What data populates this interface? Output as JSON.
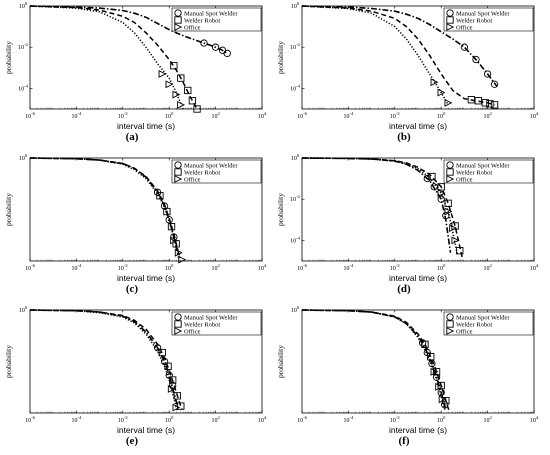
{
  "figure": {
    "style": {
      "manual_line": "#000000",
      "welder_line": "#000000",
      "office_line": "#000000"
    }
  },
  "chart_data": [
    {
      "type": "line",
      "panel_label": "(a)",
      "xlabel": "interval time (s)",
      "ylabel": "probability",
      "xscale": "log",
      "yscale": "log",
      "xlim": [
        "10^-6",
        "10^4"
      ],
      "x_ticks": [
        "10^-6",
        "10^-4",
        "10^-2",
        "10^0",
        "10^2",
        "10^4"
      ],
      "y_ticks": [
        "10^-4",
        "10^-2",
        "10^0"
      ],
      "ylim_log10": [
        -5,
        0
      ],
      "xlim_log10": [
        -6,
        4
      ],
      "legend": [
        "Manual Spot Welder",
        "Welder Robot",
        "Office"
      ],
      "legend_position": "top-right",
      "series": [
        {
          "name": "Manual Spot Welder",
          "marker": "circle",
          "line": "dash-dot",
          "x_log10": [
            -6,
            -4,
            -3,
            -2,
            -1.5,
            -1,
            -0.5,
            0,
            0.5,
            1,
            1.5,
            2,
            2.3,
            2.5
          ],
          "y_log10": [
            0,
            -0.05,
            -0.1,
            -0.22,
            -0.35,
            -0.55,
            -0.85,
            -1.15,
            -1.4,
            -1.6,
            -1.8,
            -2.0,
            -2.15,
            -2.3
          ],
          "markers_x_log10": [
            1.5,
            2.0,
            2.3,
            2.5
          ],
          "markers_y_log10": [
            -1.8,
            -2.0,
            -2.15,
            -2.3
          ]
        },
        {
          "name": "Welder Robot",
          "marker": "square",
          "line": "dashed",
          "x_log10": [
            -6,
            -4,
            -3,
            -2,
            -1.5,
            -1,
            -0.5,
            0,
            0.3,
            0.6,
            0.9,
            1.2
          ],
          "y_log10": [
            0,
            -0.08,
            -0.2,
            -0.5,
            -0.8,
            -1.3,
            -1.9,
            -2.6,
            -3.1,
            -3.7,
            -4.4,
            -5.0
          ],
          "markers_x_log10": [
            0.2,
            0.5,
            0.8,
            1.0,
            1.2
          ],
          "markers_y_log10": [
            -2.9,
            -3.5,
            -4.1,
            -4.6,
            -5.0
          ]
        },
        {
          "name": "Office",
          "marker": "triangle",
          "line": "dotted",
          "x_log10": [
            -6,
            -4,
            -3,
            -2,
            -1.5,
            -1,
            -0.5,
            0,
            0.3,
            0.6
          ],
          "y_log10": [
            0,
            -0.1,
            -0.28,
            -0.8,
            -1.3,
            -2.0,
            -2.8,
            -3.5,
            -4.2,
            -5.0
          ],
          "markers_x_log10": [
            -0.3,
            0.0,
            0.3,
            0.5
          ],
          "markers_y_log10": [
            -3.3,
            -3.8,
            -4.3,
            -4.8
          ]
        }
      ]
    },
    {
      "type": "line",
      "panel_label": "(b)",
      "xlabel": "interval time (s)",
      "ylabel": "probability",
      "xscale": "log",
      "yscale": "log",
      "xlim": [
        "10^-6",
        "10^4"
      ],
      "x_ticks": [
        "10^-6",
        "10^-4",
        "10^-2",
        "10^0",
        "10^2",
        "10^4"
      ],
      "y_ticks": [
        "10^-4",
        "10^-2",
        "10^0"
      ],
      "ylim_log10": [
        -5,
        0
      ],
      "xlim_log10": [
        -6,
        4
      ],
      "legend": [
        "Manual Spot Welder",
        "Welder Robot",
        "Office"
      ],
      "legend_position": "top-right",
      "series": [
        {
          "name": "Manual Spot Welder",
          "marker": "circle",
          "line": "dash-dot",
          "x_log10": [
            -6,
            -4,
            -3,
            -2,
            -1.5,
            -1,
            -0.5,
            0,
            0.5,
            1,
            1.5,
            2,
            2.4
          ],
          "y_log10": [
            0,
            -0.05,
            -0.12,
            -0.25,
            -0.4,
            -0.6,
            -0.9,
            -1.25,
            -1.6,
            -2.0,
            -2.6,
            -3.3,
            -3.9
          ],
          "markers_x_log10": [
            1.0,
            1.5,
            2.0,
            2.3
          ],
          "markers_y_log10": [
            -2.0,
            -2.6,
            -3.3,
            -3.8
          ]
        },
        {
          "name": "Welder Robot",
          "marker": "square",
          "line": "dashed",
          "x_log10": [
            -6,
            -4,
            -3,
            -2,
            -1.5,
            -1,
            -0.5,
            0,
            0.5,
            1,
            1.5,
            2,
            2.3
          ],
          "y_log10": [
            0,
            -0.1,
            -0.25,
            -0.6,
            -1.0,
            -1.6,
            -2.4,
            -3.3,
            -4.1,
            -4.5,
            -4.6,
            -4.7,
            -4.8
          ],
          "markers_x_log10": [
            1.3,
            1.6,
            1.9,
            2.1,
            2.3
          ],
          "markers_y_log10": [
            -4.55,
            -4.6,
            -4.7,
            -4.75,
            -4.8
          ]
        },
        {
          "name": "Office",
          "marker": "triangle",
          "line": "dotted",
          "x_log10": [
            -6,
            -4,
            -3,
            -2,
            -1.5,
            -1,
            -0.5,
            0,
            0.3
          ],
          "y_log10": [
            0,
            -0.12,
            -0.35,
            -1.0,
            -1.6,
            -2.4,
            -3.3,
            -4.2,
            -4.8
          ],
          "markers_x_log10": [
            -0.3,
            0.0,
            0.3
          ],
          "markers_y_log10": [
            -3.7,
            -4.2,
            -4.7
          ]
        }
      ]
    },
    {
      "type": "line",
      "panel_label": "(c)",
      "xlabel": "interval time (s)",
      "ylabel": "probability",
      "xscale": "log",
      "yscale": "log",
      "xlim": [
        "10^-6",
        "10^4"
      ],
      "x_ticks": [
        "10^-6",
        "10^-4",
        "10^-2",
        "10^0",
        "10^2",
        "10^4"
      ],
      "y_ticks": [
        "10^0"
      ],
      "ylim_log10": [
        -1.5,
        0
      ],
      "xlim_log10": [
        -6,
        4
      ],
      "legend": [
        "Manual Spot Welder",
        "Welder Robot",
        "Office"
      ],
      "legend_position": "top-right",
      "series": [
        {
          "name": "Manual Spot Welder",
          "marker": "circle",
          "line": "dash-dot",
          "x_log10": [
            -6,
            -4,
            -3,
            -2,
            -1.5,
            -1,
            -0.5,
            -0.2,
            0,
            0.2,
            0.4
          ],
          "y_log10": [
            0,
            -0.01,
            -0.03,
            -0.08,
            -0.15,
            -0.28,
            -0.5,
            -0.7,
            -0.9,
            -1.15,
            -1.45
          ],
          "markers_x_log10": [
            -0.5,
            -0.2,
            0.0,
            0.2
          ],
          "markers_y_log10": [
            -0.5,
            -0.7,
            -0.9,
            -1.15
          ]
        },
        {
          "name": "Welder Robot",
          "marker": "square",
          "line": "dashed",
          "x_log10": [
            -6,
            -4,
            -3,
            -2,
            -1.5,
            -1,
            -0.5,
            -0.2,
            0,
            0.2,
            0.45
          ],
          "y_log10": [
            0,
            -0.01,
            -0.03,
            -0.08,
            -0.15,
            -0.27,
            -0.48,
            -0.68,
            -0.88,
            -1.1,
            -1.45
          ],
          "markers_x_log10": [
            -0.4,
            -0.1,
            0.1,
            0.3
          ],
          "markers_y_log10": [
            -0.55,
            -0.78,
            -1.0,
            -1.25
          ]
        },
        {
          "name": "Office",
          "marker": "triangle",
          "line": "dotted",
          "x_log10": [
            -6,
            -4,
            -3,
            -2,
            -1.5,
            -1,
            -0.5,
            -0.2,
            0,
            0.2,
            0.5
          ],
          "y_log10": [
            0,
            -0.01,
            -0.03,
            -0.09,
            -0.17,
            -0.3,
            -0.52,
            -0.72,
            -0.92,
            -1.15,
            -1.48
          ],
          "markers_x_log10": [
            0.2,
            0.4,
            0.55
          ],
          "markers_y_log10": [
            -1.2,
            -1.38,
            -1.48
          ]
        }
      ]
    },
    {
      "type": "line",
      "panel_label": "(d)",
      "xlabel": "interval time (s)",
      "ylabel": "probability",
      "xscale": "log",
      "yscale": "log",
      "xlim": [
        "10^-6",
        "10^4"
      ],
      "x_ticks": [
        "10^-6",
        "10^-4",
        "10^-2",
        "10^0",
        "10^2",
        "10^4"
      ],
      "y_ticks": [
        "10^-4",
        "10^-2",
        "10^0"
      ],
      "ylim_log10": [
        -5,
        0
      ],
      "xlim_log10": [
        -6,
        4
      ],
      "legend": [
        "Manual Spot Welder",
        "Welder Robot",
        "Office"
      ],
      "legend_position": "top-right",
      "series": [
        {
          "name": "Manual Spot Welder",
          "marker": "circle",
          "line": "dash-dot",
          "x_log10": [
            -6,
            -4,
            -3,
            -2,
            -1.5,
            -1,
            -0.5,
            0,
            0.2,
            0.4
          ],
          "y_log10": [
            0,
            -0.02,
            -0.05,
            -0.15,
            -0.3,
            -0.6,
            -1.1,
            -2.0,
            -3.0,
            -4.6
          ],
          "markers_x_log10": [
            -0.6,
            -0.3,
            0.0,
            0.2
          ],
          "markers_y_log10": [
            -1.0,
            -1.4,
            -2.0,
            -2.8
          ]
        },
        {
          "name": "Welder Robot",
          "marker": "square",
          "line": "dashed",
          "x_log10": [
            -6,
            -4,
            -3,
            -2,
            -1.5,
            -1,
            -0.5,
            0,
            0.3,
            0.6,
            0.9
          ],
          "y_log10": [
            0,
            -0.02,
            -0.05,
            -0.13,
            -0.24,
            -0.45,
            -0.8,
            -1.4,
            -2.2,
            -3.3,
            -4.8
          ],
          "markers_x_log10": [
            -0.4,
            0.0,
            0.3,
            0.6,
            0.8
          ],
          "markers_y_log10": [
            -0.9,
            -1.4,
            -2.2,
            -3.3,
            -4.5
          ]
        },
        {
          "name": "Office",
          "marker": "triangle",
          "line": "dotted",
          "x_log10": [
            -6,
            -4,
            -3,
            -2,
            -1.5,
            -1,
            -0.5,
            0,
            0.3,
            0.5,
            0.7
          ],
          "y_log10": [
            0,
            -0.02,
            -0.05,
            -0.14,
            -0.27,
            -0.52,
            -0.95,
            -1.7,
            -2.6,
            -3.6,
            -4.7
          ],
          "markers_x_log10": [
            0.0,
            0.3,
            0.5,
            0.6
          ],
          "markers_y_log10": [
            -1.7,
            -2.6,
            -3.4,
            -4.0
          ]
        }
      ]
    },
    {
      "type": "line",
      "panel_label": "(e)",
      "xlabel": "interval time (s)",
      "ylabel": "probability",
      "xscale": "log",
      "yscale": "log",
      "xlim": [
        "10^-6",
        "10^4"
      ],
      "x_ticks": [
        "10^-6",
        "10^-4",
        "10^-2",
        "10^0",
        "10^2",
        "10^4"
      ],
      "y_ticks": [
        "10^0"
      ],
      "ylim_log10": [
        -1.5,
        0
      ],
      "xlim_log10": [
        -6,
        4
      ],
      "legend": [
        "Manual Spot Welder",
        "Welder Robot",
        "Office"
      ],
      "legend_position": "top-right",
      "series": [
        {
          "name": "Manual Spot Welder",
          "marker": "circle",
          "line": "dash-dot",
          "x_log10": [
            -6,
            -4,
            -3,
            -2,
            -1.5,
            -1,
            -0.5,
            -0.2,
            0,
            0.2,
            0.4
          ],
          "y_log10": [
            0,
            -0.01,
            -0.03,
            -0.09,
            -0.17,
            -0.32,
            -0.55,
            -0.75,
            -0.95,
            -1.2,
            -1.45
          ],
          "markers_x_log10": [
            -0.5,
            -0.2,
            0.0,
            0.15
          ],
          "markers_y_log10": [
            -0.55,
            -0.75,
            -0.95,
            -1.1
          ]
        },
        {
          "name": "Welder Robot",
          "marker": "square",
          "line": "dashed",
          "x_log10": [
            -6,
            -4,
            -3,
            -2,
            -1.5,
            -1,
            -0.5,
            -0.2,
            0,
            0.2,
            0.4,
            0.55
          ],
          "y_log10": [
            0,
            -0.01,
            -0.03,
            -0.08,
            -0.15,
            -0.28,
            -0.5,
            -0.7,
            -0.88,
            -1.08,
            -1.3,
            -1.45
          ],
          "markers_x_log10": [
            -0.3,
            -0.05,
            0.15,
            0.35,
            0.5
          ],
          "markers_y_log10": [
            -0.62,
            -0.82,
            -1.02,
            -1.25,
            -1.4
          ]
        },
        {
          "name": "Office",
          "marker": "triangle",
          "line": "dotted",
          "x_log10": [
            -6,
            -4,
            -3,
            -2,
            -1.5,
            -1,
            -0.5,
            -0.2,
            0,
            0.2,
            0.35
          ],
          "y_log10": [
            0,
            -0.01,
            -0.04,
            -0.1,
            -0.19,
            -0.35,
            -0.6,
            -0.82,
            -1.02,
            -1.28,
            -1.48
          ],
          "markers_x_log10": [
            0.1,
            0.3
          ],
          "markers_y_log10": [
            -1.15,
            -1.42
          ]
        }
      ]
    },
    {
      "type": "line",
      "panel_label": "(f)",
      "xlabel": "interval time (s)",
      "ylabel": "probability",
      "xscale": "log",
      "yscale": "log",
      "xlim": [
        "10^-6",
        "10^4"
      ],
      "x_ticks": [
        "10^-6",
        "10^-4",
        "10^-2",
        "10^0",
        "10^2",
        "10^4"
      ],
      "y_ticks": [
        "10^0"
      ],
      "ylim_log10": [
        -1.5,
        0
      ],
      "xlim_log10": [
        -6,
        4
      ],
      "legend": [
        "Manual Spot Welder",
        "Welder Robot",
        "Office"
      ],
      "legend_position": "top-right",
      "series": [
        {
          "name": "Manual Spot Welder",
          "marker": "circle",
          "line": "dash-dot",
          "x_log10": [
            -6,
            -4,
            -3,
            -2,
            -1.5,
            -1,
            -0.7,
            -0.4,
            -0.2,
            0,
            0.2
          ],
          "y_log10": [
            0,
            -0.01,
            -0.03,
            -0.1,
            -0.2,
            -0.38,
            -0.55,
            -0.78,
            -0.98,
            -1.2,
            -1.45
          ],
          "markers_x_log10": [
            -0.8,
            -0.6,
            -0.4,
            -0.2,
            0.0,
            0.15
          ],
          "markers_y_log10": [
            -0.48,
            -0.62,
            -0.78,
            -0.98,
            -1.2,
            -1.38
          ]
        },
        {
          "name": "Welder Robot",
          "marker": "square",
          "line": "dashed",
          "x_log10": [
            -6,
            -4,
            -3,
            -2,
            -1.5,
            -1,
            -0.7,
            -0.4,
            -0.2,
            0,
            0.2,
            0.35
          ],
          "y_log10": [
            0,
            -0.01,
            -0.03,
            -0.09,
            -0.18,
            -0.35,
            -0.5,
            -0.72,
            -0.9,
            -1.1,
            -1.32,
            -1.48
          ],
          "markers_x_log10": [
            -0.7,
            -0.45,
            -0.2,
            0.0,
            0.2
          ],
          "markers_y_log10": [
            -0.5,
            -0.68,
            -0.9,
            -1.1,
            -1.32
          ]
        },
        {
          "name": "Office",
          "marker": "triangle",
          "line": "dotted",
          "x_log10": [
            -6,
            -4,
            -3,
            -2,
            -1.5,
            -1,
            -0.7,
            -0.4,
            -0.2,
            0,
            0.15
          ],
          "y_log10": [
            0,
            -0.01,
            -0.03,
            -0.1,
            -0.2,
            -0.4,
            -0.58,
            -0.82,
            -1.02,
            -1.25,
            -1.45
          ],
          "markers_x_log10": [
            -0.3,
            -0.1,
            0.05
          ],
          "markers_y_log10": [
            -0.9,
            -1.12,
            -1.3
          ]
        }
      ]
    }
  ]
}
